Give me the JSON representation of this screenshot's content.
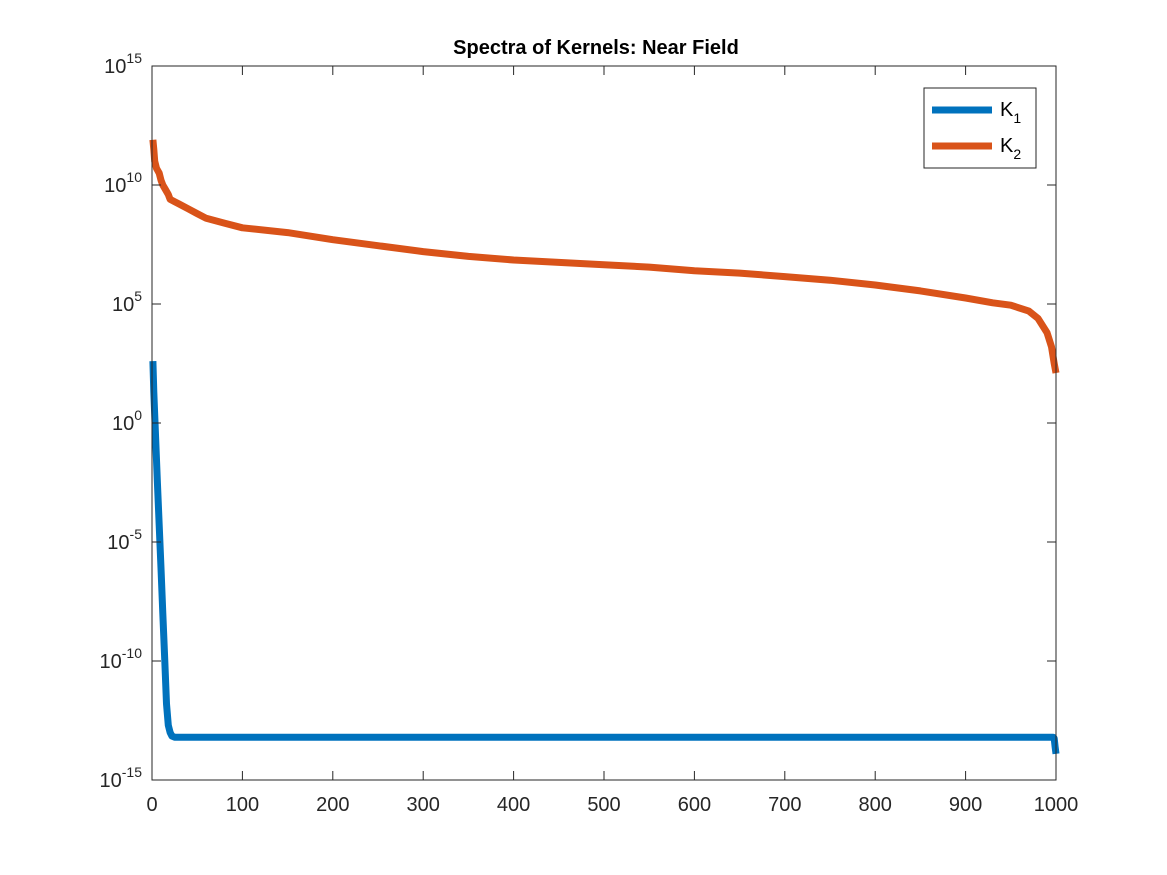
{
  "chart_data": {
    "type": "line",
    "title": "Spectra of Kernels: Near Field",
    "xlabel": "",
    "ylabel": "",
    "y_scale": "log",
    "xlim": [
      0,
      1000
    ],
    "ylim_exponent": [
      -15,
      15
    ],
    "x_ticks": [
      0,
      100,
      200,
      300,
      400,
      500,
      600,
      700,
      800,
      900,
      1000
    ],
    "y_ticks": [
      {
        "base": "10",
        "exp": "-15"
      },
      {
        "base": "10",
        "exp": "-10"
      },
      {
        "base": "10",
        "exp": "-5"
      },
      {
        "base": "10",
        "exp": "0"
      },
      {
        "base": "10",
        "exp": "5"
      },
      {
        "base": "10",
        "exp": "10"
      },
      {
        "base": "10",
        "exp": "15"
      }
    ],
    "grid": false,
    "legend_position": "top-right",
    "series": [
      {
        "name": "K",
        "name_sub": "1",
        "color": "#0072BD",
        "x": [
          1,
          2,
          4,
          6,
          8,
          10,
          12,
          14,
          16,
          18,
          20,
          22,
          25,
          30,
          50,
          100,
          200,
          300,
          400,
          500,
          600,
          700,
          800,
          900,
          950,
          990,
          997,
          998,
          999,
          1000
        ],
        "y_log10": [
          2.6,
          1.3,
          -0.6,
          -2.5,
          -4.3,
          -6.1,
          -8.0,
          -9.9,
          -11.8,
          -12.7,
          -13.0,
          -13.15,
          -13.2,
          -13.2,
          -13.2,
          -13.2,
          -13.2,
          -13.2,
          -13.2,
          -13.2,
          -13.2,
          -13.2,
          -13.2,
          -13.2,
          -13.2,
          -13.2,
          -13.2,
          -13.25,
          -13.6,
          -13.9
        ]
      },
      {
        "name": "K",
        "name_sub": "2",
        "color": "#D95319",
        "x": [
          1,
          2,
          3,
          5,
          8,
          10,
          12,
          15,
          18,
          20,
          25,
          30,
          40,
          50,
          60,
          80,
          100,
          150,
          200,
          250,
          300,
          350,
          400,
          450,
          500,
          550,
          600,
          650,
          700,
          750,
          800,
          850,
          900,
          930,
          950,
          970,
          980,
          990,
          995,
          998,
          1000
        ],
        "y_log10": [
          11.9,
          11.5,
          11.0,
          10.7,
          10.5,
          10.2,
          10.0,
          9.8,
          9.6,
          9.4,
          9.3,
          9.2,
          9.0,
          8.8,
          8.6,
          8.4,
          8.2,
          8.0,
          7.7,
          7.45,
          7.2,
          7.0,
          6.85,
          6.75,
          6.65,
          6.55,
          6.4,
          6.3,
          6.15,
          6.0,
          5.8,
          5.55,
          5.25,
          5.05,
          4.95,
          4.7,
          4.4,
          3.8,
          3.2,
          2.5,
          2.1
        ]
      }
    ]
  }
}
